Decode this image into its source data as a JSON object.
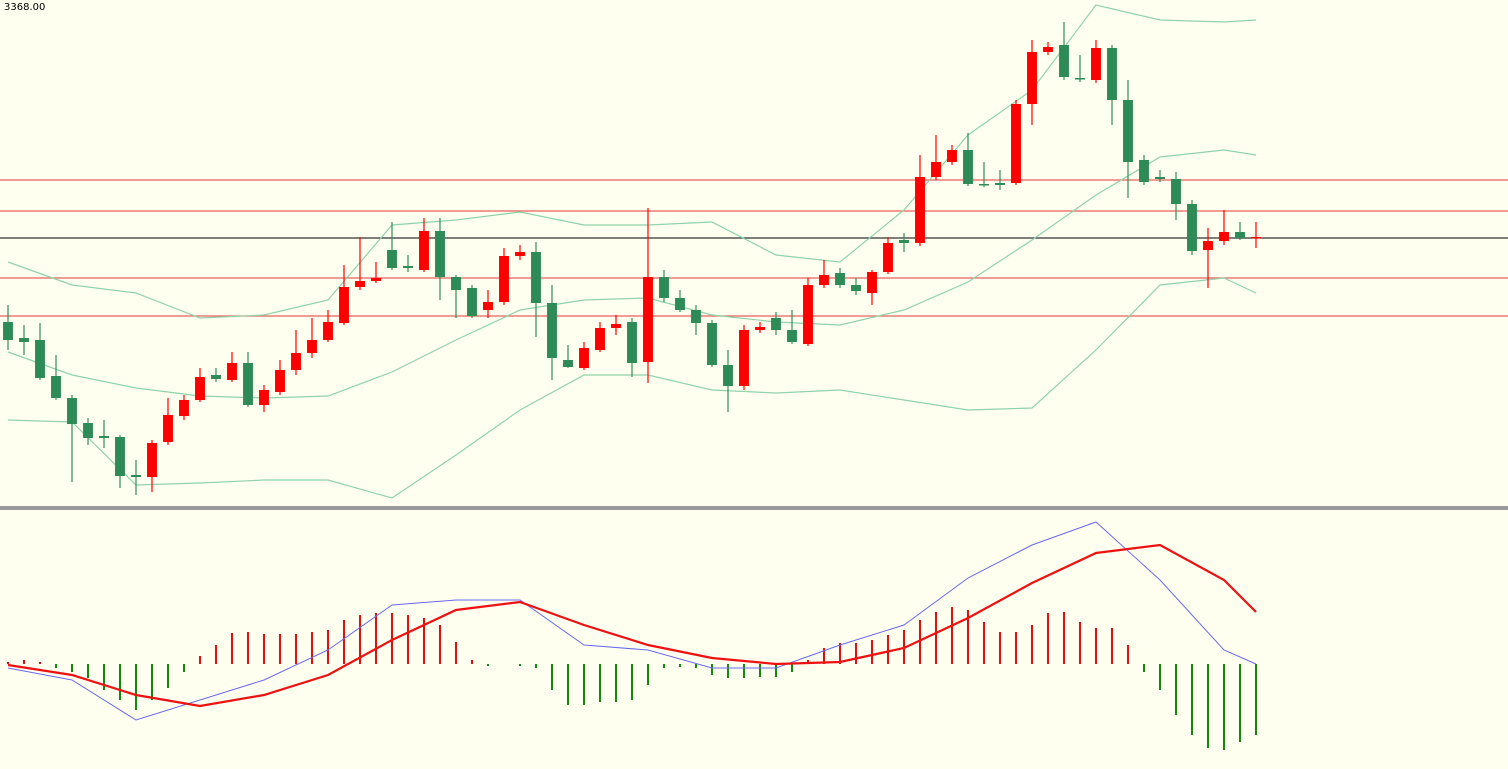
{
  "chart_data": [
    {
      "type": "candlestick",
      "label": "3368.00",
      "xlim": [
        -0.5,
        93.75
      ],
      "ylim": [
        3319.5,
        3370
      ],
      "up_color": "#ff0000",
      "down_color": "#2e8b57",
      "open": [
        3337.8,
        3336.2,
        3336.0,
        3332.4,
        3330.2,
        3327.7,
        3326.4,
        3326.3,
        3322.5,
        3322.3,
        3325.8,
        3328.4,
        3330.0,
        3332.5,
        3332.0,
        3333.7,
        3329.5,
        3330.8,
        3333.0,
        3334.7,
        3336.0,
        3337.7,
        3341.3,
        3341.9,
        3345.0,
        3343.4,
        3343.0,
        3346.9,
        3342.3,
        3341.2,
        3339.0,
        3339.8,
        3344.4,
        3344.8,
        3339.7,
        3334.0,
        3333.2,
        3335.0,
        3337.2,
        3337.8,
        3333.8,
        3342.3,
        3340.2,
        3339.0,
        3337.7,
        3333.5,
        3331.4,
        3337.0,
        3338.2,
        3337.0,
        3335.6,
        3341.5,
        3342.7,
        3341.5,
        3340.7,
        3342.8,
        3346.0,
        3345.7,
        3352.3,
        3353.8,
        3355.0,
        3351.6,
        3351.7,
        3351.7,
        3359.6,
        3364.8,
        3365.5,
        3362.2,
        3362.0,
        3365.2,
        3360.0,
        3354.0,
        3352.3,
        3352.1,
        3349.6,
        3345.0,
        3345.9,
        3346.8,
        3346.2
      ],
      "high": [
        3339.5,
        3337.5,
        3337.7,
        3334.5,
        3330.5,
        3328.2,
        3328.0,
        3326.5,
        3324.0,
        3326.0,
        3330.2,
        3330.5,
        3333.2,
        3333.2,
        3334.8,
        3334.8,
        3331.5,
        3334.0,
        3337.0,
        3338.2,
        3339.0,
        3343.5,
        3346.3,
        3343.8,
        3347.8,
        3344.5,
        3348.2,
        3348.2,
        3342.5,
        3341.5,
        3341.0,
        3345.2,
        3345.5,
        3345.8,
        3341.5,
        3335.5,
        3335.8,
        3337.8,
        3338.5,
        3338.2,
        3349.2,
        3343.0,
        3341.0,
        3339.5,
        3338.0,
        3335.0,
        3337.5,
        3337.8,
        3338.8,
        3339.0,
        3342.2,
        3344.0,
        3343.2,
        3342.2,
        3343.0,
        3346.3,
        3346.7,
        3354.5,
        3356.5,
        3355.5,
        3356.7,
        3353.8,
        3353.0,
        3360.0,
        3366.0,
        3365.8,
        3367.8,
        3364.5,
        3366.0,
        3365.5,
        3362.0,
        3354.5,
        3353.0,
        3352.8,
        3350.0,
        3347.2,
        3349.0,
        3347.8,
        3347.8
      ],
      "low": [
        3335.0,
        3334.5,
        3332.0,
        3330.0,
        3321.8,
        3325.5,
        3325.2,
        3321.2,
        3320.5,
        3320.8,
        3325.5,
        3328.0,
        3329.8,
        3331.8,
        3331.8,
        3329.3,
        3328.8,
        3330.5,
        3332.5,
        3334.2,
        3335.8,
        3337.5,
        3341.0,
        3341.7,
        3343.0,
        3342.8,
        3342.8,
        3340.0,
        3338.2,
        3338.2,
        3338.2,
        3339.5,
        3344.0,
        3336.3,
        3332.0,
        3333.2,
        3333.0,
        3334.8,
        3336.5,
        3332.3,
        3331.7,
        3339.8,
        3338.8,
        3336.5,
        3333.3,
        3328.8,
        3331.0,
        3336.7,
        3336.5,
        3335.6,
        3335.4,
        3341.2,
        3341.2,
        3340.5,
        3339.5,
        3342.6,
        3344.8,
        3345.4,
        3352.0,
        3353.5,
        3351.4,
        3351.3,
        3351.0,
        3351.5,
        3357.5,
        3364.5,
        3362.0,
        3361.8,
        3361.7,
        3357.5,
        3350.2,
        3351.5,
        3351.8,
        3348.0,
        3344.5,
        3341.2,
        3345.5,
        3346.0,
        3345.2
      ],
      "close": [
        3336.0,
        3335.8,
        3332.2,
        3330.2,
        3327.6,
        3326.2,
        3326.2,
        3322.4,
        3322.3,
        3325.7,
        3328.5,
        3330.0,
        3332.3,
        3332.1,
        3333.7,
        3329.5,
        3331.0,
        3333.0,
        3334.7,
        3336.0,
        3337.8,
        3341.3,
        3341.9,
        3342.2,
        3343.2,
        3343.2,
        3346.9,
        3342.3,
        3341.0,
        3338.4,
        3339.8,
        3344.4,
        3344.8,
        3339.7,
        3334.2,
        3333.3,
        3335.2,
        3337.2,
        3337.6,
        3333.7,
        3342.3,
        3340.2,
        3339.0,
        3337.7,
        3333.5,
        3331.4,
        3337.0,
        3337.3,
        3337.0,
        3335.8,
        3341.5,
        3342.5,
        3341.5,
        3340.9,
        3342.8,
        3345.7,
        3345.7,
        3352.3,
        3353.8,
        3355.0,
        3351.6,
        3351.5,
        3351.5,
        3359.6,
        3364.8,
        3365.3,
        3362.3,
        3362.1,
        3365.2,
        3360.0,
        3353.8,
        3351.8,
        3352.1,
        3349.6,
        3344.9,
        3345.9,
        3346.8,
        3346.2,
        3346.3
      ],
      "bands": {
        "color": "#8fd3aa",
        "x": [
          0,
          4,
          8,
          12,
          16,
          20,
          24,
          28,
          32,
          36,
          40,
          44,
          48,
          52,
          56,
          60,
          64,
          68,
          72,
          76,
          78
        ],
        "upper": [
          3343.8,
          3341.5,
          3340.7,
          3338.2,
          3338.5,
          3340.0,
          3347.5,
          3348.0,
          3348.8,
          3347.5,
          3347.5,
          3347.8,
          3344.5,
          3343.8,
          3349.0,
          3356.5,
          3361.0,
          3369.5,
          3368.0,
          3367.8,
          3368.0
        ],
        "middle": [
          3334.8,
          3332.5,
          3331.2,
          3330.4,
          3330.2,
          3330.4,
          3332.8,
          3336.0,
          3339.0,
          3340.0,
          3340.2,
          3338.5,
          3337.8,
          3337.5,
          3339.0,
          3341.8,
          3346.0,
          3350.5,
          3354.3,
          3355.0,
          3354.5
        ],
        "lower": [
          3328.0,
          3327.8,
          3321.5,
          3321.7,
          3322.0,
          3322.0,
          3320.2,
          3324.5,
          3329.0,
          3332.5,
          3332.5,
          3331.0,
          3330.7,
          3331.0,
          3330.0,
          3329.0,
          3329.2,
          3335.0,
          3341.5,
          3342.2,
          3340.7
        ]
      },
      "levels": [
        {
          "value": 3352.0,
          "color": "#e8605c"
        },
        {
          "value": 3348.9,
          "color": "#e8605c"
        },
        {
          "value": 3346.2,
          "color": "#333333"
        },
        {
          "value": 3342.2,
          "color": "#e8605c"
        },
        {
          "value": 3338.4,
          "color": "#e8605c"
        }
      ]
    },
    {
      "type": "macd",
      "xlim": [
        -0.5,
        93.75
      ],
      "ylim": [
        -5.25,
        7.6
      ],
      "up_color": "#dd1111",
      "down_color": "#118811",
      "histogram": [
        0.1,
        0.2,
        0.1,
        -0.2,
        -0.4,
        -0.7,
        -1.3,
        -1.8,
        -2.3,
        -1.8,
        -1.2,
        -0.4,
        0.4,
        0.95,
        1.55,
        1.6,
        1.5,
        1.5,
        1.5,
        1.6,
        1.7,
        2.2,
        2.45,
        2.55,
        2.55,
        2.45,
        2.3,
        1.95,
        1.1,
        0.2,
        -0.1,
        0,
        -0.1,
        -0.2,
        -1.3,
        -2.05,
        -2.05,
        -1.9,
        -1.9,
        -1.8,
        -1.05,
        -0.2,
        -0.15,
        -0.2,
        -0.55,
        -0.7,
        -0.7,
        -0.65,
        -0.65,
        -0.4,
        0.2,
        0.8,
        1.05,
        1.05,
        1.2,
        1.45,
        1.7,
        2.2,
        2.6,
        2.85,
        2.7,
        2.1,
        1.6,
        1.6,
        1.95,
        2.55,
        2.6,
        2.1,
        1.8,
        1.8,
        0.95,
        -0.4,
        -1.3,
        -2.55,
        -3.55,
        -4.2,
        -4.3,
        -3.9,
        -3.55
      ],
      "x": [
        0,
        4,
        8,
        12,
        16,
        20,
        24,
        28,
        32,
        36,
        40,
        44,
        48,
        52,
        56,
        60,
        64,
        68,
        72,
        76,
        78
      ],
      "series": [
        {
          "color": "#6a6af0",
          "width": 1,
          "values": [
            -0.2,
            -0.8,
            -2.8,
            -1.8,
            -0.8,
            0.7,
            2.95,
            3.2,
            3.2,
            0.95,
            0.7,
            -0.2,
            -0.2,
            0.95,
            1.95,
            4.3,
            5.95,
            7.1,
            4.2,
            0.7,
            0
          ]
        },
        {
          "color": "#ee1111",
          "width": 2.2,
          "values": [
            -0.05,
            -0.55,
            -1.55,
            -2.1,
            -1.55,
            -0.55,
            1.2,
            2.7,
            3.1,
            1.95,
            0.95,
            0.3,
            0,
            0.1,
            0.8,
            2.3,
            4.05,
            5.55,
            5.95,
            4.2,
            2.6
          ]
        }
      ]
    }
  ]
}
